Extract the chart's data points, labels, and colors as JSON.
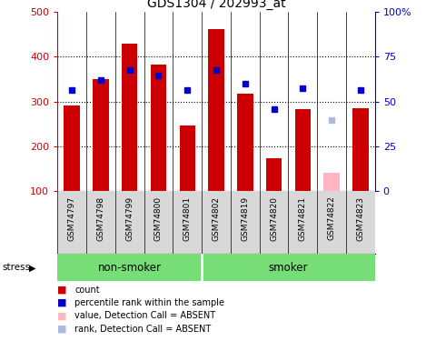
{
  "title": "GDS1304 / 202993_at",
  "samples": [
    "GSM74797",
    "GSM74798",
    "GSM74799",
    "GSM74800",
    "GSM74801",
    "GSM74802",
    "GSM74819",
    "GSM74820",
    "GSM74821",
    "GSM74822",
    "GSM74823"
  ],
  "bar_values": [
    290,
    350,
    430,
    383,
    247,
    462,
    318,
    173,
    283,
    null,
    285
  ],
  "bar_absent_values": [
    null,
    null,
    null,
    null,
    null,
    null,
    null,
    null,
    null,
    140,
    null
  ],
  "percentile_values": [
    325,
    348,
    370,
    358,
    325,
    370,
    340,
    283,
    330,
    null,
    325
  ],
  "percentile_absent_values": [
    null,
    null,
    null,
    null,
    null,
    null,
    null,
    null,
    null,
    258,
    null
  ],
  "bar_color": "#cc0000",
  "bar_absent_color": "#ffb6c1",
  "percentile_color": "#0000cc",
  "percentile_absent_color": "#b0b8e0",
  "ylim_left": [
    100,
    500
  ],
  "ylim_right": [
    0,
    100
  ],
  "yticks_left": [
    100,
    200,
    300,
    400,
    500
  ],
  "yticks_right": [
    0,
    25,
    50,
    75,
    100
  ],
  "ytick_labels_right": [
    "0",
    "25",
    "50",
    "75",
    "100%"
  ],
  "non_smoker": [
    "GSM74797",
    "GSM74798",
    "GSM74799",
    "GSM74800",
    "GSM74801"
  ],
  "smoker": [
    "GSM74802",
    "GSM74819",
    "GSM74820",
    "GSM74821",
    "GSM74822",
    "GSM74823"
  ],
  "group_label_non_smoker": "non-smoker",
  "group_label_smoker": "smoker",
  "stress_label": "stress",
  "legend_items": [
    {
      "label": "count",
      "color": "#cc0000"
    },
    {
      "label": "percentile rank within the sample",
      "color": "#0000cc"
    },
    {
      "label": "value, Detection Call = ABSENT",
      "color": "#ffb6c1"
    },
    {
      "label": "rank, Detection Call = ABSENT",
      "color": "#b0b8e0"
    }
  ],
  "grid_color": "black",
  "plot_bg_color": "#ffffff",
  "tick_bg_color": "#d8d8d8",
  "group_bg_color": "#77dd77"
}
